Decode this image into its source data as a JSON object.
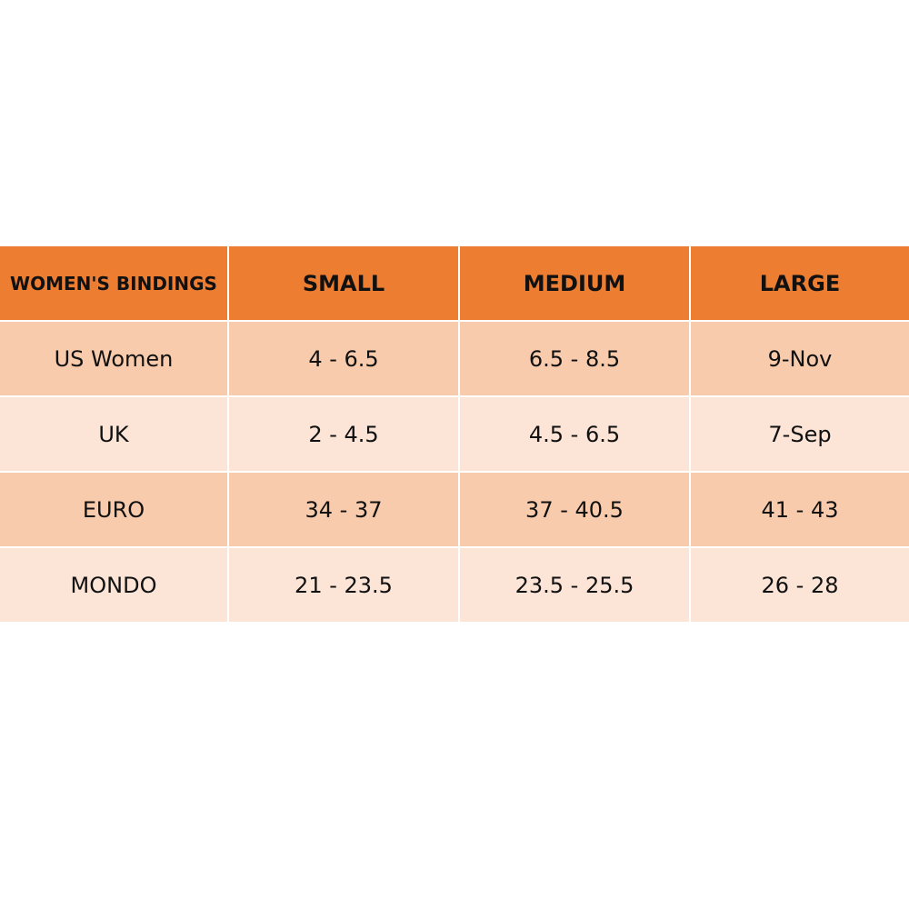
{
  "table": {
    "header": [
      "WOMEN'S BINDINGS",
      "SMALL",
      "MEDIUM",
      "LARGE"
    ],
    "rows": [
      [
        "US Women",
        "4 - 6.5",
        "6.5 - 8.5",
        "9-Nov"
      ],
      [
        "UK",
        "2 - 4.5",
        "4.5 - 6.5",
        "7-Sep"
      ],
      [
        "EURO",
        "34 - 37",
        "37 - 40.5",
        "41 - 43"
      ],
      [
        "MONDO",
        "21 - 23.5",
        "23.5 - 25.5",
        "26 - 28"
      ]
    ]
  }
}
